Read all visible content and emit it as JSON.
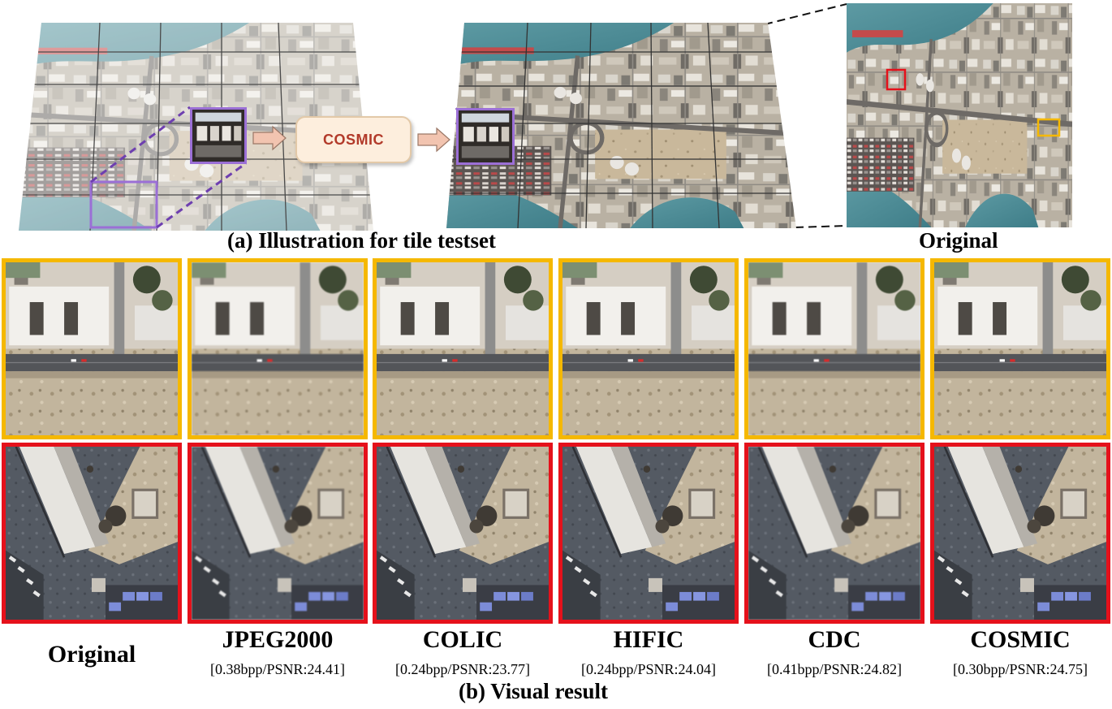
{
  "figure": {
    "caption_a": "(a) Illustration for tile testset",
    "caption_original": "Original",
    "caption_b": "(b) Visual result",
    "pipeline_label": "COSMIC",
    "colors": {
      "yellow_frame": "#f5b800",
      "red_frame": "#e5111b",
      "purple_frame": "#9b6fd6"
    }
  },
  "methods": [
    {
      "name": "Original",
      "metric": ""
    },
    {
      "name": "JPEG2000",
      "metric": "[0.38bpp/PSNR:24.41]"
    },
    {
      "name": "COLIC",
      "metric": "[0.24bpp/PSNR:23.77]"
    },
    {
      "name": "HIFIC",
      "metric": "[0.24bpp/PSNR:24.04]"
    },
    {
      "name": "CDC",
      "metric": "[0.41bpp/PSNR:24.82]"
    },
    {
      "name": "COSMIC",
      "metric": "[0.30bpp/PSNR:24.75]"
    }
  ]
}
